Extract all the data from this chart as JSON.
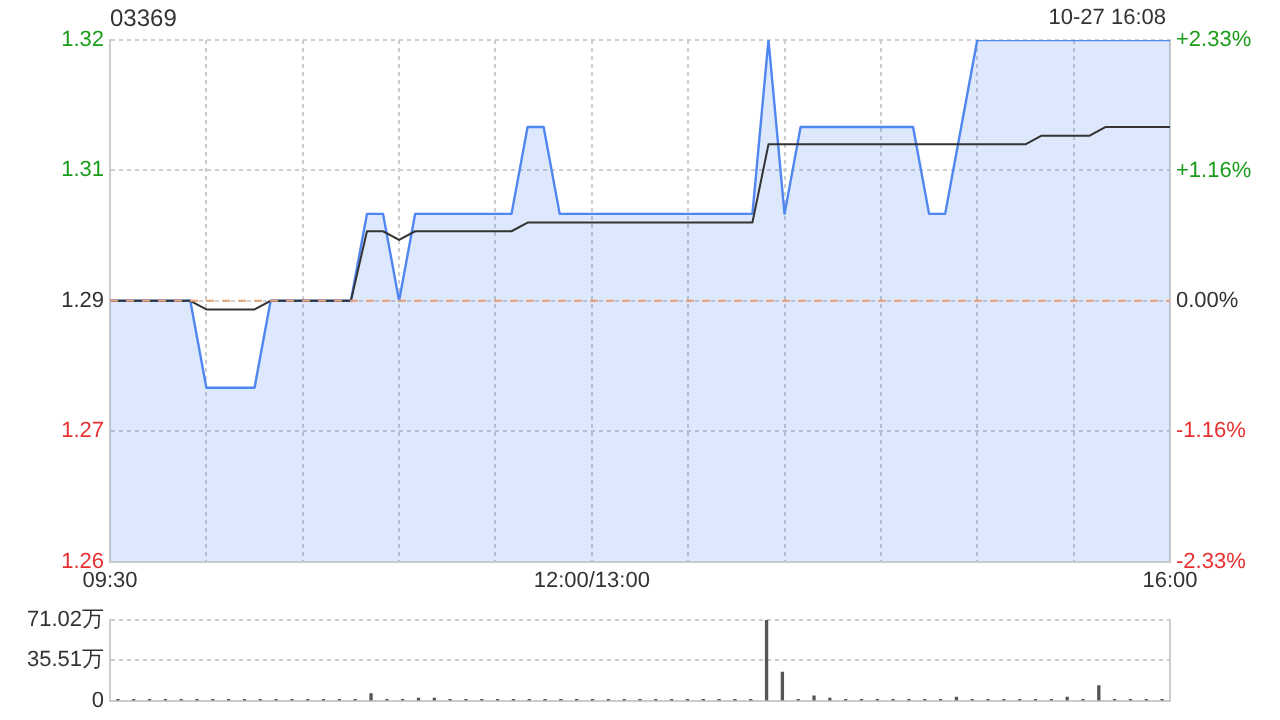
{
  "chart_data": [
    {
      "type": "line",
      "title": "03369",
      "annotations": [
        "10-27 16:08"
      ],
      "categories": [
        "09:30",
        null,
        null,
        null,
        null,
        null,
        null,
        null,
        null,
        null,
        null,
        null,
        null,
        null,
        null,
        null,
        null,
        null,
        null,
        null,
        null,
        null,
        null,
        null,
        null,
        null,
        null,
        null,
        null,
        null,
        "12:00/13:00",
        null,
        null,
        null,
        null,
        null,
        null,
        null,
        null,
        null,
        null,
        null,
        null,
        null,
        null,
        null,
        null,
        null,
        null,
        null,
        null,
        null,
        null,
        null,
        null,
        null,
        null,
        null,
        null,
        null,
        null,
        null,
        null,
        null,
        null,
        null,
        "16:00"
      ],
      "series": [
        {
          "type": "area",
          "color": "#4f86f0",
          "values": [
            1.29,
            1.29,
            1.29,
            1.29,
            1.29,
            1.29,
            1.28,
            1.28,
            1.28,
            1.28,
            1.29,
            1.29,
            1.29,
            1.29,
            1.29,
            1.29,
            1.3,
            1.3,
            1.29,
            1.3,
            1.3,
            1.3,
            1.3,
            1.3,
            1.3,
            1.3,
            1.31,
            1.31,
            1.3,
            1.3,
            1.3,
            1.3,
            1.3,
            1.3,
            1.3,
            1.3,
            1.3,
            1.3,
            1.3,
            1.3,
            1.3,
            1.32,
            1.3,
            1.31,
            1.31,
            1.31,
            1.31,
            1.31,
            1.31,
            1.31,
            1.31,
            1.3,
            1.3,
            1.31,
            1.32,
            1.32,
            1.32,
            1.32,
            1.32,
            1.32,
            1.32,
            1.32,
            1.32,
            1.32,
            1.32,
            1.32,
            1.32
          ]
        },
        {
          "type": "line",
          "color": "#333333",
          "values": [
            1.29,
            1.29,
            1.29,
            1.29,
            1.29,
            1.29,
            1.289,
            1.289,
            1.289,
            1.289,
            1.29,
            1.29,
            1.29,
            1.29,
            1.29,
            1.29,
            1.298,
            1.298,
            1.297,
            1.298,
            1.298,
            1.298,
            1.298,
            1.298,
            1.298,
            1.298,
            1.299,
            1.299,
            1.299,
            1.299,
            1.299,
            1.299,
            1.299,
            1.299,
            1.299,
            1.299,
            1.299,
            1.299,
            1.299,
            1.299,
            1.299,
            1.308,
            1.308,
            1.308,
            1.308,
            1.308,
            1.308,
            1.308,
            1.308,
            1.308,
            1.308,
            1.308,
            1.308,
            1.308,
            1.308,
            1.308,
            1.308,
            1.308,
            1.309,
            1.309,
            1.309,
            1.309,
            1.31,
            1.31,
            1.31,
            1.31,
            1.31
          ]
        }
      ],
      "ylim": [
        1.26,
        1.32
      ],
      "yticks": [
        1.26,
        {
          "value": 1.275,
          "label": "1.27"
        },
        1.29,
        {
          "value": 1.305,
          "label": "1.31"
        },
        1.32
      ],
      "y2lim": [
        -2.33,
        2.33
      ],
      "y2ticks": [
        {
          "value": -2.33,
          "label": "-2.33%"
        },
        {
          "value": -1.16,
          "label": "-1.16%"
        },
        {
          "value": 0,
          "label": "0.00%"
        },
        {
          "value": 1.16,
          "label": "+1.16%"
        },
        {
          "value": 2.33,
          "label": "+2.33%"
        }
      ],
      "ref_lines": [
        {
          "axis": "y",
          "value": 1.29,
          "color": "#e8a07a",
          "line_style": "dashed"
        }
      ],
      "grid": true,
      "legend": false
    },
    {
      "type": "bar",
      "color": "#555555",
      "categories": [
        null,
        null,
        null,
        null,
        null,
        null,
        null,
        null,
        null,
        null,
        null,
        null,
        null,
        null,
        null,
        null,
        null,
        null,
        null,
        null,
        null,
        null,
        null,
        null,
        null,
        null,
        null,
        null,
        null,
        null,
        null,
        null,
        null,
        null,
        null,
        null,
        null,
        null,
        null,
        null,
        null,
        null,
        null,
        null,
        null,
        null,
        null,
        null,
        null,
        null,
        null,
        null,
        null,
        null,
        null,
        null,
        null,
        null,
        null,
        null,
        null,
        null,
        null,
        null,
        null,
        null,
        null
      ],
      "values": [
        1,
        1,
        1,
        1,
        1,
        1,
        1,
        1,
        1,
        1,
        1,
        1,
        1,
        1,
        1,
        1,
        6,
        1,
        1,
        2,
        2,
        1,
        1,
        1,
        1,
        1,
        1,
        1,
        1,
        1,
        1,
        1,
        1,
        1,
        1,
        1,
        1,
        1,
        1,
        1,
        1,
        71,
        25,
        1,
        4,
        2,
        1,
        1,
        1,
        1,
        1,
        1,
        1,
        3,
        1,
        1,
        1,
        1,
        1,
        1,
        3,
        1,
        13,
        1,
        1,
        1,
        1
      ],
      "ylim": [
        0,
        71.02
      ],
      "yticks": [
        0,
        {
          "value": 35.51,
          "label": "35.51万"
        },
        {
          "value": 71.02,
          "label": "71.02万"
        }
      ],
      "grid": "y",
      "tick_labels": "y",
      "legend": false
    }
  ]
}
